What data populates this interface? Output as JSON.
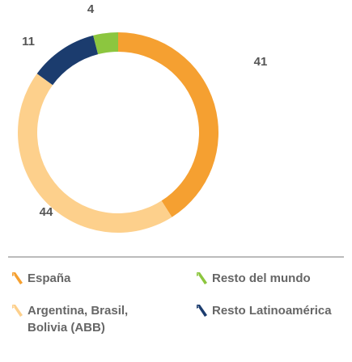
{
  "chart_data": {
    "type": "donut",
    "series": [
      {
        "name": "España",
        "color": "#f5a031",
        "values": [
          41
        ]
      },
      {
        "name": "Argentina, Brasil, Bolivia (ABB)",
        "color": "#fdd08c",
        "values": [
          44
        ]
      },
      {
        "name": "Resto Latinoamérica",
        "color": "#1b3c6e",
        "values": [
          11
        ]
      },
      {
        "name": "Resto del mundo",
        "color": "#8cc63f",
        "values": [
          4
        ]
      }
    ]
  }
}
